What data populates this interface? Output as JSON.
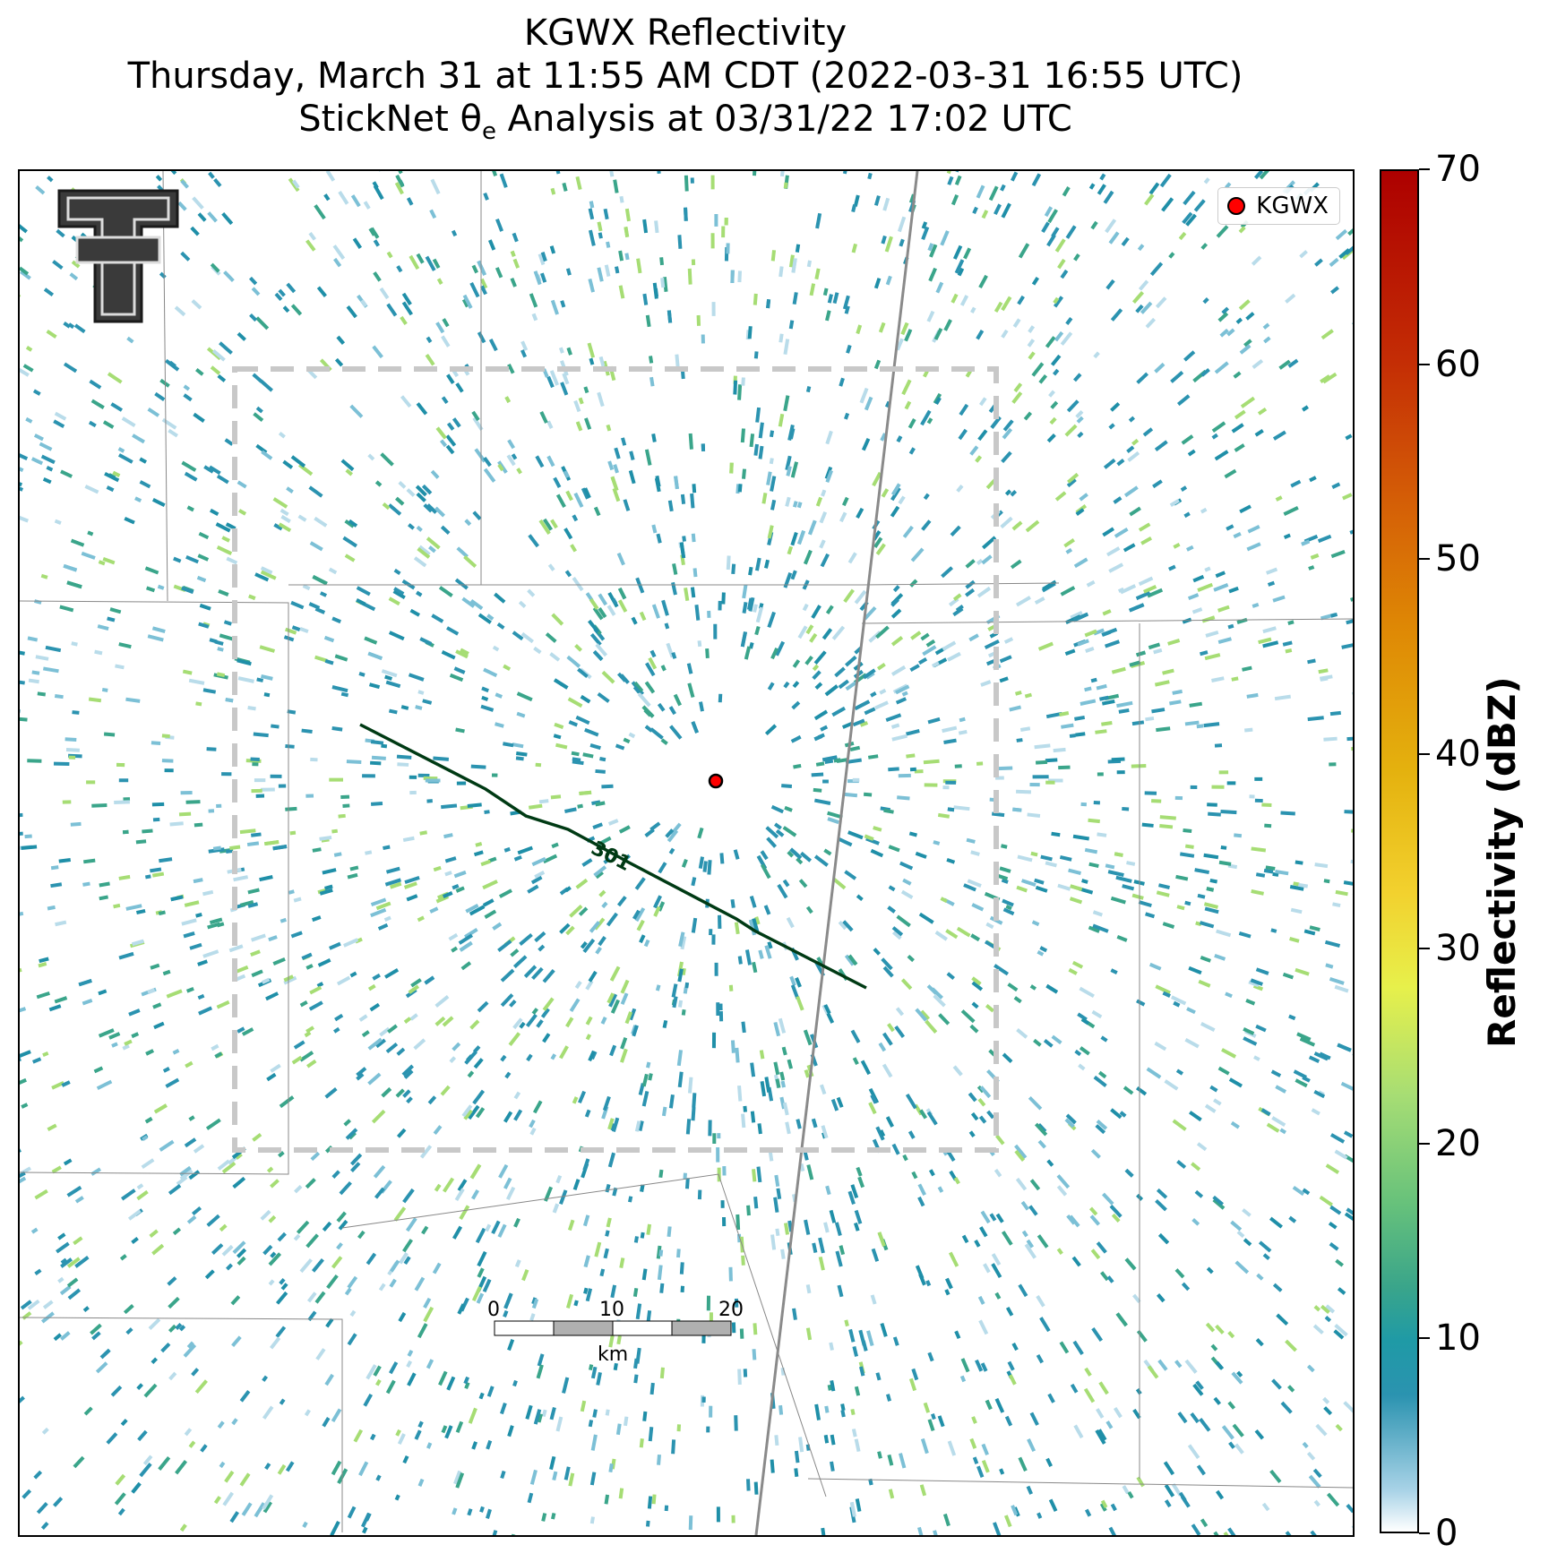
{
  "title": {
    "line1": "KGWX Reflectivity",
    "line2": "Thursday, March 31 at 11:55 AM CDT (2022-03-31 16:55 UTC)",
    "line3": "StickNet θe Analysis at 03/31/22 17:02 UTC"
  },
  "legend": {
    "label": "KGWX",
    "marker_color": "#ff0000"
  },
  "contour": {
    "label": "301",
    "color": "#003a14"
  },
  "scale_bar": {
    "ticks": [
      "0",
      "10",
      "20"
    ],
    "unit": "km"
  },
  "colorbar": {
    "title": "Reflectivity (dBZ)",
    "ticks": [
      "0",
      "10",
      "20",
      "30",
      "40",
      "50",
      "60",
      "70"
    ],
    "range": [
      0,
      70
    ]
  },
  "logo": {
    "text": "T"
  },
  "colors": {
    "echo_low": "#2b93b0",
    "echo_mid": "#3aa58a",
    "echo_high": "#a6dd74",
    "analysis_box": "#c8c8c8"
  }
}
